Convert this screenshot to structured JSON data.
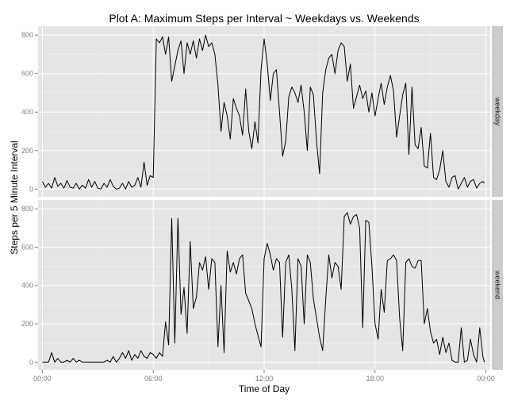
{
  "chart_data": {
    "type": "line",
    "title": "Plot A: Maximum Steps per Interval ~ Weekdays vs. Weekends",
    "xlabel": "Time of Day",
    "ylabel": "Steps per 5 Minute Interval",
    "x_unit": "minutes",
    "x_ticks": [
      {
        "label": "00:00",
        "value": 0
      },
      {
        "label": "06:00",
        "value": 360
      },
      {
        "label": "12:00",
        "value": 720
      },
      {
        "label": "18:00",
        "value": 1080
      },
      {
        "label": "00:00",
        "value": 1440
      }
    ],
    "ylim": [
      0,
      806
    ],
    "y_ticks": [
      0,
      200,
      400,
      600,
      800
    ],
    "grid": true,
    "facets": [
      {
        "label": "weekday",
        "series": {
          "x": [
            0,
            10,
            20,
            30,
            40,
            50,
            60,
            70,
            80,
            90,
            100,
            110,
            120,
            130,
            140,
            150,
            160,
            170,
            180,
            190,
            200,
            210,
            220,
            230,
            240,
            250,
            260,
            270,
            280,
            290,
            300,
            310,
            320,
            330,
            340,
            350,
            360,
            370,
            380,
            390,
            400,
            410,
            420,
            430,
            440,
            450,
            460,
            470,
            480,
            490,
            500,
            510,
            520,
            530,
            540,
            550,
            560,
            570,
            580,
            590,
            600,
            610,
            620,
            630,
            640,
            650,
            660,
            670,
            680,
            690,
            700,
            710,
            720,
            730,
            740,
            750,
            760,
            770,
            780,
            790,
            800,
            810,
            820,
            830,
            840,
            850,
            860,
            870,
            880,
            890,
            900,
            910,
            920,
            930,
            940,
            950,
            960,
            970,
            980,
            990,
            1000,
            1010,
            1020,
            1030,
            1040,
            1050,
            1060,
            1070,
            1080,
            1090,
            1100,
            1110,
            1120,
            1130,
            1140,
            1150,
            1160,
            1170,
            1180,
            1190,
            1200,
            1210,
            1220,
            1230,
            1240,
            1250,
            1260,
            1270,
            1280,
            1290,
            1300,
            1310,
            1320,
            1330,
            1340,
            1350,
            1360,
            1370,
            1380,
            1390,
            1400,
            1410,
            1420,
            1430,
            1435
          ],
          "y": [
            40,
            10,
            30,
            5,
            60,
            15,
            30,
            5,
            45,
            10,
            5,
            30,
            0,
            20,
            5,
            50,
            10,
            40,
            5,
            0,
            30,
            10,
            50,
            15,
            0,
            5,
            30,
            0,
            40,
            10,
            20,
            60,
            10,
            140,
            20,
            70,
            60,
            780,
            760,
            790,
            700,
            790,
            560,
            640,
            720,
            770,
            600,
            760,
            700,
            770,
            680,
            780,
            720,
            800,
            740,
            760,
            700,
            540,
            300,
            450,
            380,
            260,
            470,
            420,
            380,
            280,
            520,
            300,
            210,
            350,
            240,
            620,
            780,
            650,
            460,
            600,
            620,
            400,
            170,
            250,
            480,
            530,
            500,
            450,
            540,
            400,
            200,
            530,
            490,
            250,
            80,
            500,
            620,
            680,
            700,
            600,
            720,
            760,
            740,
            560,
            650,
            420,
            480,
            540,
            470,
            510,
            400,
            500,
            380,
            470,
            550,
            440,
            530,
            590,
            510,
            270,
            380,
            490,
            550,
            180,
            530,
            230,
            210,
            320,
            120,
            110,
            290,
            60,
            50,
            100,
            200,
            40,
            10,
            60,
            70,
            0,
            30,
            60,
            10,
            40,
            50,
            5,
            30,
            40,
            30
          ],
          "peak": 806
        }
      },
      {
        "label": "weekend",
        "series": {
          "x": [
            0,
            10,
            20,
            30,
            40,
            50,
            60,
            70,
            80,
            90,
            100,
            110,
            120,
            130,
            140,
            150,
            160,
            170,
            180,
            190,
            200,
            210,
            220,
            230,
            240,
            250,
            260,
            270,
            280,
            290,
            300,
            310,
            320,
            330,
            340,
            350,
            360,
            370,
            380,
            390,
            400,
            410,
            420,
            430,
            440,
            450,
            460,
            470,
            480,
            490,
            500,
            510,
            520,
            530,
            540,
            550,
            560,
            570,
            580,
            590,
            600,
            610,
            620,
            630,
            640,
            650,
            660,
            670,
            680,
            690,
            700,
            710,
            720,
            730,
            740,
            750,
            760,
            770,
            780,
            790,
            800,
            810,
            820,
            830,
            840,
            850,
            860,
            870,
            880,
            890,
            900,
            910,
            920,
            930,
            940,
            950,
            960,
            970,
            980,
            990,
            1000,
            1010,
            1020,
            1030,
            1040,
            1050,
            1060,
            1070,
            1080,
            1090,
            1100,
            1110,
            1120,
            1130,
            1140,
            1150,
            1160,
            1170,
            1180,
            1190,
            1200,
            1210,
            1220,
            1230,
            1240,
            1250,
            1260,
            1270,
            1280,
            1290,
            1300,
            1310,
            1320,
            1330,
            1340,
            1350,
            1360,
            1370,
            1380,
            1390,
            1400,
            1410,
            1420,
            1430,
            1435
          ],
          "y": [
            0,
            0,
            0,
            50,
            0,
            20,
            0,
            0,
            10,
            0,
            20,
            0,
            10,
            0,
            0,
            0,
            0,
            0,
            0,
            0,
            0,
            10,
            0,
            30,
            0,
            20,
            50,
            20,
            60,
            10,
            40,
            20,
            60,
            30,
            20,
            50,
            40,
            20,
            50,
            30,
            210,
            90,
            750,
            100,
            750,
            250,
            390,
            150,
            630,
            280,
            340,
            520,
            480,
            550,
            380,
            540,
            520,
            80,
            400,
            50,
            580,
            470,
            520,
            460,
            540,
            560,
            360,
            320,
            280,
            200,
            140,
            80,
            540,
            620,
            560,
            480,
            540,
            520,
            130,
            520,
            560,
            380,
            60,
            540,
            500,
            200,
            560,
            520,
            330,
            230,
            130,
            60,
            330,
            560,
            440,
            520,
            500,
            380,
            760,
            780,
            720,
            760,
            770,
            700,
            180,
            740,
            730,
            500,
            200,
            120,
            380,
            260,
            530,
            540,
            560,
            530,
            230,
            60,
            520,
            540,
            500,
            490,
            530,
            530,
            200,
            280,
            160,
            100,
            120,
            40,
            130,
            50,
            100,
            10,
            0,
            0,
            180,
            0,
            10,
            120,
            40,
            0,
            180,
            30,
            0
          ],
          "peak": 785
        }
      }
    ]
  }
}
